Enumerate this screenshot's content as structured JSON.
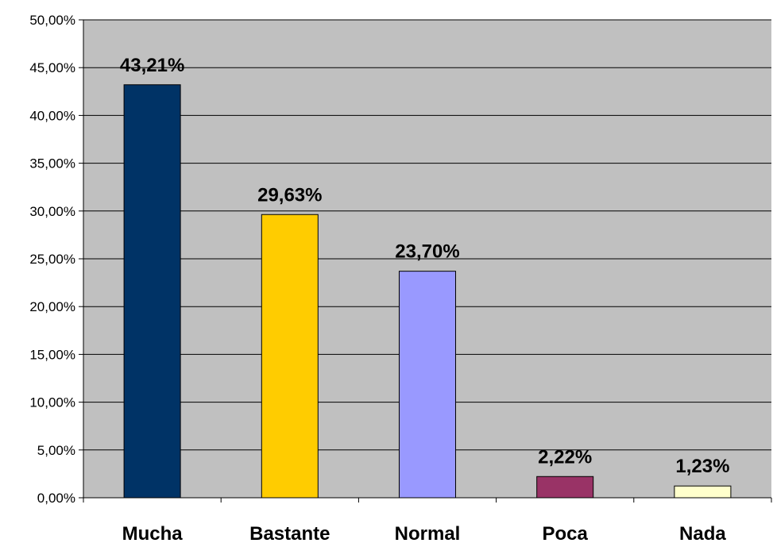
{
  "chart_data": {
    "type": "bar",
    "categories": [
      "Mucha",
      "Bastante",
      "Normal",
      "Poca",
      "Nada"
    ],
    "values": [
      43.21,
      29.63,
      23.7,
      2.22,
      1.23
    ],
    "data_labels": [
      "43,21%",
      "29,63%",
      "23,70%",
      "2,22%",
      "1,23%"
    ],
    "bar_colors": [
      "#003366",
      "#FFCC00",
      "#9999FF",
      "#993366",
      "#FFFFCC"
    ],
    "ylim": [
      0,
      50
    ],
    "yticks": [
      0,
      5,
      10,
      15,
      20,
      25,
      30,
      35,
      40,
      45,
      50
    ],
    "ytick_labels": [
      "0,00%",
      "5,00%",
      "10,00%",
      "15,00%",
      "20,00%",
      "25,00%",
      "30,00%",
      "35,00%",
      "40,00%",
      "45,00%",
      "50,00%"
    ],
    "title": "",
    "xlabel": "",
    "ylabel": "",
    "grid": true,
    "plot_background": "#C0C0C0"
  }
}
